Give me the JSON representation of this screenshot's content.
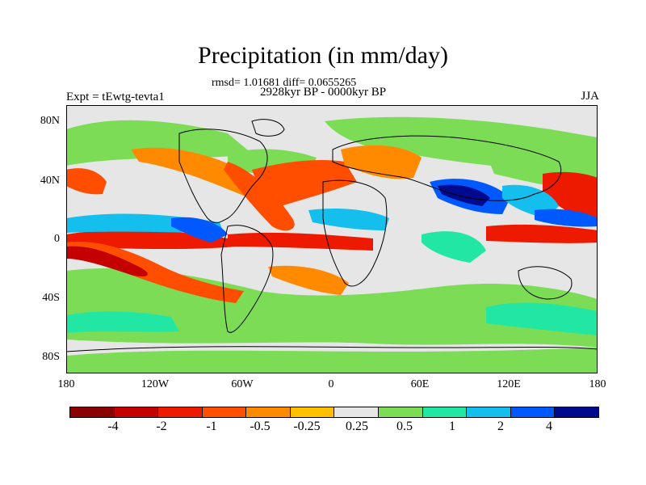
{
  "header": {
    "title": "Precipitation (in mm/day)",
    "stats": "rmsd= 1.01681  diff= 0.0655265",
    "period": "2928kyr BP - 0000kyr BP",
    "experiment": "Expt = tEwtg-tevta1",
    "season": "JJA"
  },
  "map": {
    "lat_labels": [
      "80N",
      "40N",
      "0",
      "40S",
      "80S"
    ],
    "lon_labels": [
      "180",
      "120W",
      "60W",
      "0",
      "60E",
      "120E",
      "180"
    ]
  },
  "legend": {
    "colors": [
      "#8b0000",
      "#c40000",
      "#ee1a00",
      "#ff4e00",
      "#ff8a00",
      "#ffc000",
      "#e6e6e6",
      "#7ddc55",
      "#22e6a4",
      "#14bfee",
      "#0059ff",
      "#000a8f"
    ],
    "labels": [
      "-4",
      "-2",
      "-1",
      "-0.5",
      "-0.25",
      "0.25",
      "0.5",
      "1",
      "2",
      "4"
    ]
  }
}
